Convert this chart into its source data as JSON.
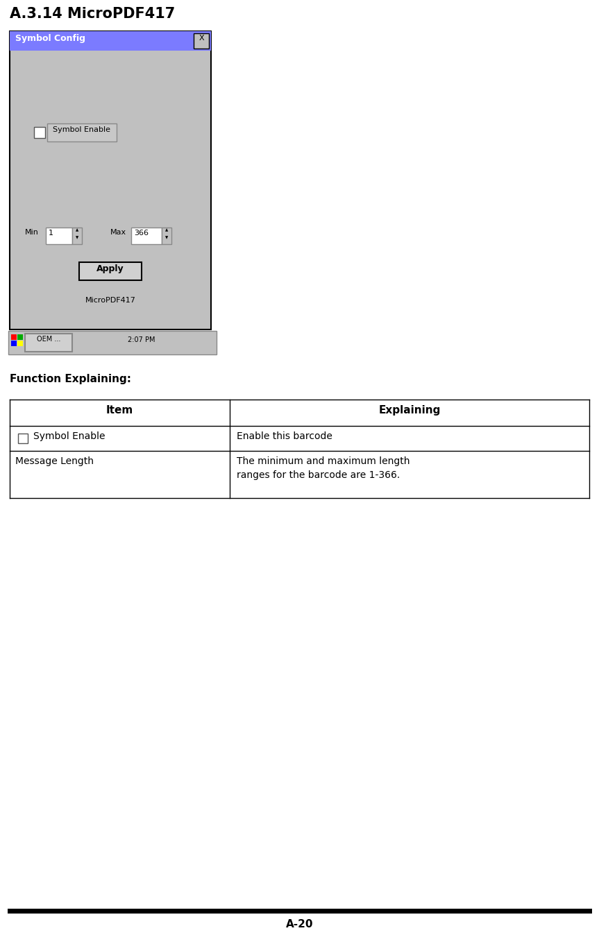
{
  "title": "A.3.14 MicroPDF417",
  "title_fontsize": 15,
  "function_explaining_label": "Function Explaining:",
  "function_explaining_fontsize": 11,
  "table_headers": [
    "Item",
    "Explaining"
  ],
  "footer_text": "A-20",
  "bg_color": "#ffffff",
  "dialog_bg": "#c0c0c0",
  "dialog_title_bg": "#7b7bff",
  "dialog_title_text": "Symbol Config",
  "dialog_title_color": "#ffffff",
  "close_btn_color": "#c0c0c0",
  "taskbar_color": "#c0c0c0"
}
